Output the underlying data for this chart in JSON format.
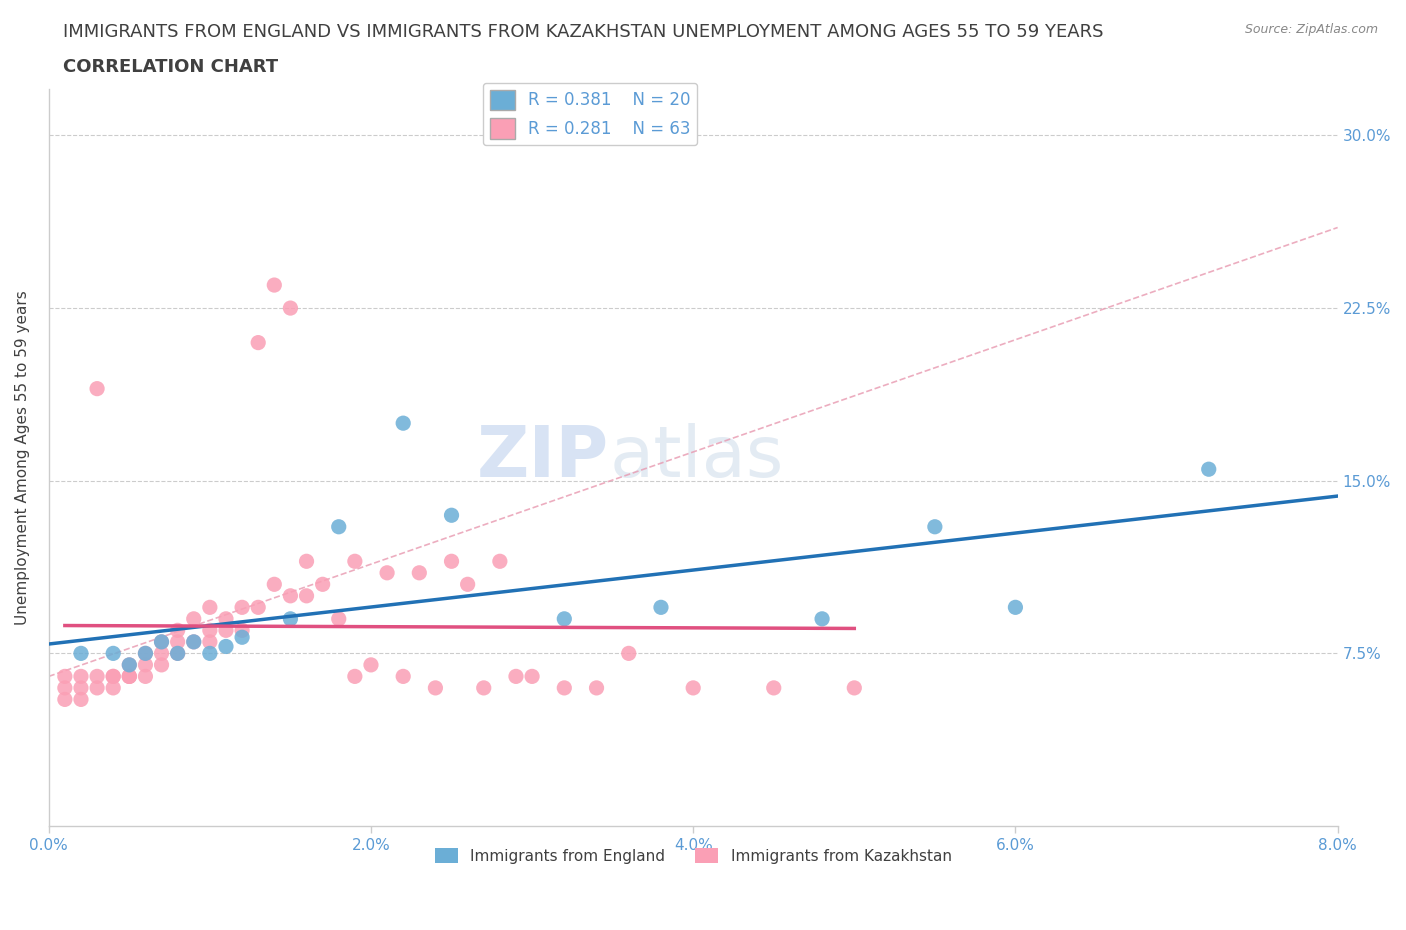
{
  "title_line1": "IMMIGRANTS FROM ENGLAND VS IMMIGRANTS FROM KAZAKHSTAN UNEMPLOYMENT AMONG AGES 55 TO 59 YEARS",
  "title_line2": "CORRELATION CHART",
  "source": "Source: ZipAtlas.com",
  "ylabel": "Unemployment Among Ages 55 to 59 years",
  "xlim": [
    0.0,
    0.08
  ],
  "ylim": [
    0.0,
    0.32
  ],
  "xticks": [
    0.0,
    0.02,
    0.04,
    0.06,
    0.08
  ],
  "xtick_labels": [
    "0.0%",
    "2.0%",
    "4.0%",
    "6.0%",
    "8.0%"
  ],
  "ytick_labels": [
    "7.5%",
    "15.0%",
    "22.5%",
    "30.0%"
  ],
  "ytick_values": [
    0.075,
    0.15,
    0.225,
    0.3
  ],
  "england_color": "#6baed6",
  "kazakhstan_color": "#fa9fb5",
  "england_line_color": "#2171b5",
  "kazakhstan_line_color": "#e05080",
  "dashed_line_color": "#e899b0",
  "R_england": 0.381,
  "N_england": 20,
  "R_kazakhstan": 0.281,
  "N_kazakhstan": 63,
  "england_x": [
    0.002,
    0.004,
    0.005,
    0.006,
    0.007,
    0.008,
    0.009,
    0.01,
    0.011,
    0.012,
    0.015,
    0.018,
    0.022,
    0.025,
    0.032,
    0.038,
    0.048,
    0.055,
    0.06,
    0.072
  ],
  "england_y": [
    0.075,
    0.075,
    0.07,
    0.075,
    0.08,
    0.075,
    0.08,
    0.075,
    0.078,
    0.082,
    0.09,
    0.13,
    0.175,
    0.135,
    0.09,
    0.095,
    0.09,
    0.13,
    0.095,
    0.155
  ],
  "kazakhstan_x": [
    0.001,
    0.001,
    0.001,
    0.002,
    0.002,
    0.002,
    0.003,
    0.003,
    0.003,
    0.004,
    0.004,
    0.004,
    0.005,
    0.005,
    0.005,
    0.005,
    0.006,
    0.006,
    0.006,
    0.007,
    0.007,
    0.007,
    0.008,
    0.008,
    0.008,
    0.009,
    0.009,
    0.01,
    0.01,
    0.01,
    0.011,
    0.011,
    0.012,
    0.012,
    0.013,
    0.013,
    0.014,
    0.014,
    0.015,
    0.015,
    0.016,
    0.016,
    0.017,
    0.018,
    0.019,
    0.019,
    0.02,
    0.021,
    0.022,
    0.023,
    0.024,
    0.025,
    0.026,
    0.027,
    0.028,
    0.029,
    0.03,
    0.032,
    0.034,
    0.036,
    0.04,
    0.045,
    0.05
  ],
  "kazakhstan_y": [
    0.06,
    0.065,
    0.055,
    0.06,
    0.065,
    0.055,
    0.065,
    0.06,
    0.19,
    0.065,
    0.065,
    0.06,
    0.07,
    0.065,
    0.065,
    0.065,
    0.065,
    0.07,
    0.075,
    0.07,
    0.08,
    0.075,
    0.075,
    0.08,
    0.085,
    0.08,
    0.09,
    0.08,
    0.095,
    0.085,
    0.085,
    0.09,
    0.085,
    0.095,
    0.095,
    0.21,
    0.105,
    0.235,
    0.1,
    0.225,
    0.1,
    0.115,
    0.105,
    0.09,
    0.065,
    0.115,
    0.07,
    0.11,
    0.065,
    0.11,
    0.06,
    0.115,
    0.105,
    0.06,
    0.115,
    0.065,
    0.065,
    0.06,
    0.06,
    0.075,
    0.06,
    0.06,
    0.06
  ],
  "watermark_zip": "ZIP",
  "watermark_atlas": "atlas",
  "title_color": "#404040",
  "title_fontsize": 13,
  "axis_label_color": "#404040",
  "tick_color": "#5b9bd5",
  "legend_fontsize": 12
}
